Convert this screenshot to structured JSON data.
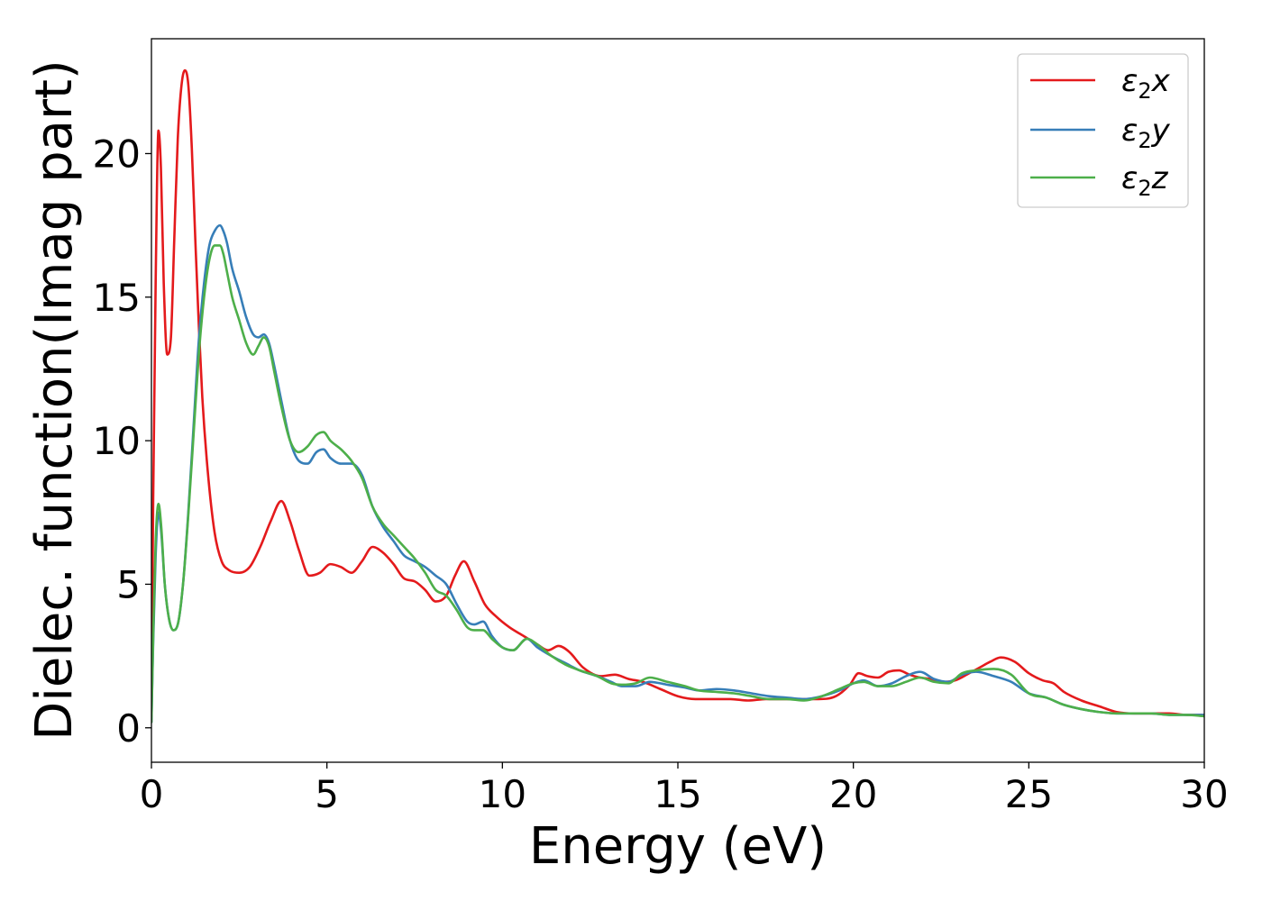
{
  "chart_data": {
    "type": "line",
    "xlabel": "Energy (eV)",
    "ylabel": "Dielec. function(Imag part)",
    "xlim": [
      0,
      30
    ],
    "ylim": [
      -1.2,
      24
    ],
    "xticks": [
      0,
      5,
      10,
      15,
      20,
      25,
      30
    ],
    "yticks": [
      0,
      5,
      10,
      15,
      20
    ],
    "grid": false,
    "legend_position": "top-right",
    "series": [
      {
        "name": "ε2x",
        "legend_base": "ε",
        "legend_sub": "2",
        "legend_var": "x",
        "color": "#e41a1c",
        "x": [
          0,
          0.05,
          0.12,
          0.2,
          0.27,
          0.35,
          0.45,
          0.55,
          0.65,
          0.75,
          0.85,
          0.95,
          1.05,
          1.15,
          1.25,
          1.35,
          1.45,
          1.6,
          1.8,
          2.0,
          2.2,
          2.5,
          2.8,
          3.1,
          3.4,
          3.7,
          3.95,
          4.2,
          4.5,
          4.8,
          5.1,
          5.4,
          5.7,
          6.0,
          6.3,
          6.6,
          6.9,
          7.2,
          7.5,
          7.8,
          8.1,
          8.4,
          8.65,
          8.9,
          9.2,
          9.5,
          9.8,
          10.2,
          10.6,
          11.0,
          11.3,
          11.6,
          11.9,
          12.3,
          12.8,
          13.2,
          13.6,
          14.0,
          14.5,
          15.0,
          15.5,
          16.0,
          16.5,
          17.0,
          17.5,
          18.0,
          18.5,
          19.0,
          19.5,
          19.9,
          20.15,
          20.4,
          20.7,
          21.0,
          21.3,
          21.6,
          21.9,
          22.2,
          22.5,
          22.9,
          23.3,
          23.6,
          23.9,
          24.2,
          24.6,
          25.0,
          25.4,
          25.7,
          26.0,
          26.5,
          27.0,
          27.5,
          28.0,
          28.5,
          29.0,
          29.5,
          30.0
        ],
        "y": [
          0.5,
          8.0,
          15.5,
          20.8,
          19.5,
          15.5,
          13.0,
          13.5,
          17.0,
          20.5,
          22.3,
          22.9,
          22.4,
          20.2,
          17.0,
          14.0,
          11.5,
          9.0,
          6.8,
          5.8,
          5.5,
          5.4,
          5.6,
          6.3,
          7.2,
          7.9,
          7.2,
          6.2,
          5.3,
          5.4,
          5.7,
          5.6,
          5.4,
          5.8,
          6.3,
          6.1,
          5.7,
          5.2,
          5.1,
          4.8,
          4.4,
          4.6,
          5.3,
          5.8,
          5.1,
          4.3,
          3.9,
          3.5,
          3.2,
          2.9,
          2.7,
          2.85,
          2.65,
          2.1,
          1.8,
          1.85,
          1.7,
          1.6,
          1.35,
          1.1,
          1.0,
          1.0,
          1.0,
          0.95,
          1.0,
          1.0,
          1.0,
          1.0,
          1.1,
          1.5,
          1.9,
          1.8,
          1.75,
          1.95,
          2.0,
          1.85,
          1.75,
          1.7,
          1.6,
          1.65,
          1.9,
          2.1,
          2.3,
          2.45,
          2.3,
          1.9,
          1.65,
          1.55,
          1.25,
          0.95,
          0.75,
          0.55,
          0.5,
          0.5,
          0.5,
          0.45,
          0.45
        ]
      },
      {
        "name": "ε2y",
        "legend_base": "ε",
        "legend_sub": "2",
        "legend_var": "y",
        "color": "#377eb8",
        "x": [
          0,
          0.05,
          0.12,
          0.2,
          0.28,
          0.38,
          0.5,
          0.62,
          0.75,
          0.9,
          1.05,
          1.2,
          1.35,
          1.5,
          1.65,
          1.8,
          1.95,
          2.05,
          2.15,
          2.3,
          2.5,
          2.7,
          2.9,
          3.05,
          3.2,
          3.35,
          3.5,
          3.7,
          3.95,
          4.2,
          4.45,
          4.7,
          4.9,
          5.1,
          5.4,
          5.7,
          6.0,
          6.3,
          6.6,
          6.9,
          7.2,
          7.5,
          7.8,
          8.1,
          8.4,
          8.7,
          9.0,
          9.2,
          9.45,
          9.7,
          10.0,
          10.3,
          10.7,
          11.0,
          11.4,
          11.8,
          12.2,
          12.7,
          13.1,
          13.4,
          13.8,
          14.2,
          14.7,
          15.2,
          15.6,
          16.1,
          16.6,
          17.1,
          17.6,
          18.1,
          18.6,
          19.1,
          19.6,
          20.0,
          20.3,
          20.7,
          21.1,
          21.5,
          21.9,
          22.3,
          22.7,
          23.1,
          23.5,
          24.0,
          24.5,
          25.0,
          25.5,
          26.0,
          26.5,
          27.0,
          27.5,
          28.0,
          28.5,
          29.0,
          29.5,
          30.0
        ],
        "y": [
          0.2,
          3.0,
          6.0,
          7.5,
          6.8,
          5.0,
          3.8,
          3.4,
          3.6,
          5.0,
          7.5,
          10.5,
          13.5,
          15.5,
          16.8,
          17.3,
          17.5,
          17.3,
          16.9,
          16.0,
          15.2,
          14.3,
          13.7,
          13.6,
          13.7,
          13.4,
          12.6,
          11.4,
          10.0,
          9.3,
          9.2,
          9.6,
          9.7,
          9.4,
          9.2,
          9.2,
          8.8,
          7.7,
          7.0,
          6.5,
          6.0,
          5.8,
          5.6,
          5.3,
          5.0,
          4.3,
          3.7,
          3.6,
          3.7,
          3.2,
          2.8,
          2.7,
          3.1,
          2.8,
          2.5,
          2.25,
          2.0,
          1.8,
          1.6,
          1.45,
          1.45,
          1.6,
          1.5,
          1.4,
          1.3,
          1.35,
          1.3,
          1.2,
          1.1,
          1.05,
          1.0,
          1.1,
          1.3,
          1.55,
          1.65,
          1.45,
          1.55,
          1.8,
          1.95,
          1.7,
          1.6,
          1.85,
          1.95,
          1.8,
          1.6,
          1.2,
          1.05,
          0.8,
          0.65,
          0.55,
          0.5,
          0.5,
          0.5,
          0.45,
          0.45,
          0.45
        ]
      },
      {
        "name": "ε2z",
        "legend_base": "ε",
        "legend_sub": "2",
        "legend_var": "z",
        "color": "#4daf4a",
        "x": [
          0,
          0.05,
          0.12,
          0.2,
          0.28,
          0.38,
          0.5,
          0.62,
          0.75,
          0.9,
          1.05,
          1.2,
          1.35,
          1.5,
          1.65,
          1.8,
          1.95,
          2.05,
          2.15,
          2.3,
          2.5,
          2.7,
          2.9,
          3.05,
          3.2,
          3.35,
          3.5,
          3.7,
          3.95,
          4.2,
          4.45,
          4.7,
          4.9,
          5.1,
          5.4,
          5.7,
          6.0,
          6.3,
          6.6,
          6.9,
          7.2,
          7.5,
          7.8,
          8.1,
          8.4,
          8.7,
          9.0,
          9.2,
          9.45,
          9.7,
          10.0,
          10.3,
          10.7,
          11.0,
          11.4,
          11.8,
          12.2,
          12.7,
          13.1,
          13.4,
          13.8,
          14.2,
          14.7,
          15.2,
          15.6,
          16.1,
          16.6,
          17.1,
          17.6,
          18.1,
          18.6,
          19.1,
          19.6,
          20.0,
          20.3,
          20.7,
          21.1,
          21.5,
          21.9,
          22.3,
          22.7,
          23.1,
          23.5,
          24.0,
          24.5,
          25.0,
          25.5,
          26.0,
          26.5,
          27.0,
          27.5,
          28.0,
          28.5,
          29.0,
          29.5,
          30.0
        ],
        "y": [
          0.2,
          3.2,
          6.5,
          7.8,
          7.0,
          5.0,
          3.8,
          3.4,
          3.6,
          5.0,
          7.4,
          10.2,
          13.0,
          15.0,
          16.3,
          16.8,
          16.8,
          16.5,
          15.9,
          15.0,
          14.2,
          13.4,
          13.0,
          13.3,
          13.6,
          13.3,
          12.4,
          11.2,
          10.0,
          9.6,
          9.8,
          10.2,
          10.3,
          10.0,
          9.7,
          9.3,
          8.7,
          7.7,
          7.1,
          6.7,
          6.3,
          5.9,
          5.4,
          4.8,
          4.6,
          4.1,
          3.5,
          3.4,
          3.4,
          3.1,
          2.8,
          2.7,
          3.1,
          2.9,
          2.5,
          2.2,
          2.0,
          1.8,
          1.55,
          1.5,
          1.55,
          1.75,
          1.6,
          1.45,
          1.3,
          1.25,
          1.2,
          1.1,
          1.0,
          1.0,
          0.95,
          1.1,
          1.35,
          1.55,
          1.6,
          1.45,
          1.45,
          1.6,
          1.75,
          1.6,
          1.55,
          1.9,
          2.0,
          2.05,
          1.85,
          1.2,
          1.05,
          0.8,
          0.65,
          0.55,
          0.5,
          0.5,
          0.5,
          0.45,
          0.45,
          0.4
        ]
      }
    ]
  }
}
